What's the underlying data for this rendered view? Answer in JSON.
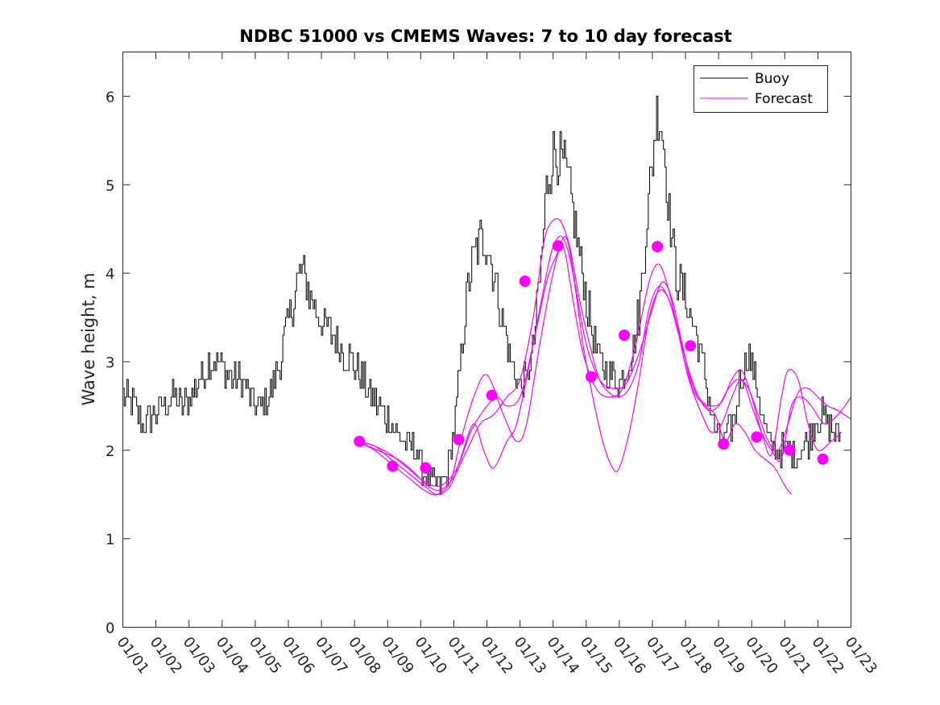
{
  "chart_data": {
    "type": "line",
    "title": "NDBC 51000 vs CMEMS Waves: 7 to 10 day forecast",
    "xlabel": "",
    "ylabel": "Wave height, m",
    "xlim": [
      0,
      22
    ],
    "ylim": [
      0,
      6.5
    ],
    "y_ticks": [
      0,
      1,
      2,
      3,
      4,
      5,
      6
    ],
    "x_tick_labels": [
      "01/01",
      "01/02",
      "01/03",
      "01/04",
      "01/05",
      "01/06",
      "01/07",
      "01/08",
      "01/09",
      "01/10",
      "01/11",
      "01/12",
      "01/13",
      "01/14",
      "01/15",
      "01/16",
      "01/17",
      "01/18",
      "01/19",
      "01/20",
      "01/21",
      "01/22",
      "01/23"
    ],
    "colors": {
      "buoy": "#000000",
      "forecast": "#ff00ff"
    },
    "legend": {
      "position": "top-right",
      "entries": [
        "Buoy",
        "Forecast"
      ]
    },
    "series": [
      {
        "name": "Buoy",
        "anchors": [
          [
            0.0,
            2.6
          ],
          [
            0.3,
            2.5
          ],
          [
            0.6,
            2.3
          ],
          [
            0.9,
            2.4
          ],
          [
            1.2,
            2.5
          ],
          [
            1.5,
            2.6
          ],
          [
            1.8,
            2.5
          ],
          [
            2.0,
            2.6
          ],
          [
            2.3,
            2.8
          ],
          [
            2.6,
            3.0
          ],
          [
            2.9,
            3.0
          ],
          [
            3.1,
            2.9
          ],
          [
            3.3,
            2.8
          ],
          [
            3.5,
            2.8
          ],
          [
            3.7,
            2.7
          ],
          [
            4.0,
            2.5
          ],
          [
            4.2,
            2.5
          ],
          [
            4.4,
            2.6
          ],
          [
            4.6,
            2.8
          ],
          [
            4.8,
            3.1
          ],
          [
            5.0,
            3.5
          ],
          [
            5.2,
            3.8
          ],
          [
            5.35,
            4.05
          ],
          [
            5.5,
            3.9
          ],
          [
            5.7,
            3.7
          ],
          [
            5.9,
            3.5
          ],
          [
            6.1,
            3.4
          ],
          [
            6.3,
            3.3
          ],
          [
            6.5,
            3.2
          ],
          [
            6.7,
            3.1
          ],
          [
            6.9,
            3.0
          ],
          [
            7.1,
            2.9
          ],
          [
            7.3,
            2.75
          ],
          [
            7.5,
            2.6
          ],
          [
            7.7,
            2.5
          ],
          [
            7.9,
            2.4
          ],
          [
            8.1,
            2.3
          ],
          [
            8.3,
            2.15
          ],
          [
            8.6,
            2.05
          ],
          [
            8.9,
            2.0
          ],
          [
            9.0,
            1.8
          ],
          [
            9.2,
            1.65
          ],
          [
            9.4,
            1.6
          ],
          [
            9.6,
            1.6
          ],
          [
            9.8,
            1.75
          ],
          [
            10.0,
            2.2
          ],
          [
            10.2,
            3.0
          ],
          [
            10.4,
            3.8
          ],
          [
            10.6,
            4.2
          ],
          [
            10.8,
            4.4
          ],
          [
            11.0,
            4.3
          ],
          [
            11.2,
            4.0
          ],
          [
            11.4,
            3.6
          ],
          [
            11.6,
            3.2
          ],
          [
            11.8,
            2.9
          ],
          [
            12.0,
            2.7
          ],
          [
            12.2,
            2.8
          ],
          [
            12.4,
            3.2
          ],
          [
            12.6,
            4.0
          ],
          [
            12.8,
            5.0
          ],
          [
            13.0,
            5.4
          ],
          [
            13.2,
            5.3
          ],
          [
            13.4,
            5.1
          ],
          [
            13.6,
            4.7
          ],
          [
            13.8,
            4.2
          ],
          [
            14.0,
            3.7
          ],
          [
            14.2,
            3.3
          ],
          [
            14.4,
            3.0
          ],
          [
            14.6,
            2.9
          ],
          [
            14.8,
            2.8
          ],
          [
            15.0,
            2.8
          ],
          [
            15.2,
            2.9
          ],
          [
            15.4,
            3.1
          ],
          [
            15.6,
            3.6
          ],
          [
            15.8,
            4.5
          ],
          [
            16.0,
            5.3
          ],
          [
            16.15,
            5.9
          ],
          [
            16.3,
            5.6
          ],
          [
            16.5,
            4.7
          ],
          [
            16.7,
            4.0
          ],
          [
            16.9,
            3.8
          ],
          [
            17.1,
            3.6
          ],
          [
            17.3,
            3.3
          ],
          [
            17.5,
            3.0
          ],
          [
            17.7,
            2.6
          ],
          [
            17.9,
            2.2
          ],
          [
            18.1,
            2.1
          ],
          [
            18.3,
            2.2
          ],
          [
            18.5,
            2.4
          ],
          [
            18.7,
            2.9
          ],
          [
            18.9,
            3.1
          ],
          [
            19.1,
            2.8
          ],
          [
            19.3,
            2.4
          ],
          [
            19.5,
            2.1
          ],
          [
            19.7,
            2.0
          ],
          [
            19.9,
            2.0
          ],
          [
            20.1,
            2.0
          ],
          [
            20.3,
            1.95
          ],
          [
            20.5,
            2.0
          ],
          [
            20.7,
            2.1
          ],
          [
            20.9,
            2.3
          ],
          [
            21.1,
            2.4
          ],
          [
            21.3,
            2.3
          ],
          [
            21.5,
            2.2
          ],
          [
            21.7,
            2.2
          ]
        ]
      },
      {
        "name": "Forecast",
        "lines": [
          [
            [
              7.1,
              2.1
            ],
            [
              7.6,
              2.0
            ],
            [
              8.1,
              1.85
            ],
            [
              8.6,
              1.7
            ],
            [
              9.1,
              1.55
            ],
            [
              9.5,
              1.5
            ],
            [
              9.9,
              1.65
            ],
            [
              10.2,
              2.1
            ],
            [
              10.6,
              2.6
            ],
            [
              11.0,
              2.85
            ],
            [
              11.5,
              2.4
            ],
            [
              11.9,
              2.1
            ],
            [
              12.2,
              2.3
            ],
            [
              12.6,
              3.2
            ],
            [
              13.0,
              4.0
            ],
            [
              13.3,
              4.3
            ],
            [
              13.6,
              3.7
            ],
            [
              13.9,
              3.1
            ],
            [
              14.3,
              2.7
            ],
            [
              14.7,
              2.6
            ],
            [
              15.1,
              2.7
            ],
            [
              15.5,
              3.2
            ],
            [
              15.9,
              3.9
            ],
            [
              16.2,
              4.1
            ],
            [
              16.5,
              3.8
            ],
            [
              16.8,
              3.3
            ],
            [
              17.1,
              2.8
            ],
            [
              17.5,
              2.4
            ],
            [
              17.8,
              2.2
            ],
            [
              18.1,
              2.3
            ],
            [
              18.4,
              2.6
            ],
            [
              18.7,
              2.8
            ],
            [
              19.0,
              2.5
            ],
            [
              19.3,
              2.2
            ],
            [
              19.6,
              2.0
            ],
            [
              19.9,
              1.9
            ],
            [
              20.2,
              2.5
            ],
            [
              20.5,
              2.6
            ],
            [
              20.8,
              2.5
            ],
            [
              21.2,
              2.3
            ],
            [
              21.6,
              2.4
            ],
            [
              22.0,
              2.6
            ]
          ],
          [
            [
              7.1,
              2.1
            ],
            [
              7.6,
              2.05
            ],
            [
              8.1,
              1.9
            ],
            [
              8.6,
              1.75
            ],
            [
              9.1,
              1.6
            ],
            [
              9.5,
              1.5
            ],
            [
              9.9,
              1.6
            ],
            [
              10.2,
              1.9
            ],
            [
              10.6,
              2.3
            ],
            [
              10.9,
              2.0
            ],
            [
              11.2,
              1.8
            ],
            [
              11.6,
              2.1
            ],
            [
              11.9,
              2.3
            ],
            [
              12.3,
              3.0
            ],
            [
              12.7,
              3.8
            ],
            [
              13.0,
              4.3
            ],
            [
              13.3,
              4.4
            ],
            [
              13.6,
              4.0
            ],
            [
              13.9,
              3.2
            ],
            [
              14.2,
              2.6
            ],
            [
              14.5,
              2.1
            ],
            [
              14.8,
              1.8
            ],
            [
              15.0,
              1.8
            ],
            [
              15.3,
              2.2
            ],
            [
              15.6,
              2.8
            ],
            [
              15.9,
              3.5
            ],
            [
              16.2,
              3.8
            ],
            [
              16.5,
              3.7
            ],
            [
              16.9,
              3.2
            ],
            [
              17.2,
              2.7
            ],
            [
              17.6,
              2.5
            ],
            [
              17.9,
              2.4
            ],
            [
              18.2,
              2.1
            ],
            [
              18.5,
              2.3
            ],
            [
              18.8,
              2.2
            ],
            [
              19.1,
              2.0
            ],
            [
              19.4,
              1.9
            ],
            [
              19.7,
              1.8
            ],
            [
              20.0,
              1.6
            ],
            [
              20.2,
              1.5
            ]
          ],
          [
            [
              7.1,
              2.1
            ],
            [
              7.7,
              2.0
            ],
            [
              8.3,
              1.9
            ],
            [
              8.8,
              1.75
            ],
            [
              9.2,
              1.6
            ],
            [
              9.6,
              1.55
            ],
            [
              10.0,
              1.7
            ],
            [
              10.4,
              2.0
            ],
            [
              10.8,
              2.3
            ],
            [
              11.2,
              2.4
            ],
            [
              11.6,
              2.6
            ],
            [
              12.0,
              2.8
            ],
            [
              12.4,
              3.5
            ],
            [
              12.7,
              4.3
            ],
            [
              12.9,
              4.55
            ],
            [
              13.2,
              4.6
            ],
            [
              13.5,
              4.3
            ],
            [
              13.8,
              3.7
            ],
            [
              14.1,
              3.2
            ],
            [
              14.4,
              2.8
            ],
            [
              14.7,
              2.65
            ],
            [
              15.0,
              2.6
            ],
            [
              15.3,
              2.7
            ],
            [
              15.6,
              3.0
            ],
            [
              15.9,
              3.6
            ],
            [
              16.2,
              3.85
            ],
            [
              16.5,
              3.7
            ],
            [
              16.8,
              3.3
            ],
            [
              17.1,
              2.9
            ],
            [
              17.4,
              2.6
            ],
            [
              17.7,
              2.45
            ],
            [
              18.0,
              2.5
            ],
            [
              18.3,
              2.7
            ],
            [
              18.6,
              2.8
            ],
            [
              18.9,
              2.7
            ],
            [
              19.2,
              2.4
            ],
            [
              19.5,
              2.1
            ],
            [
              19.8,
              2.0
            ],
            [
              20.1,
              2.3
            ],
            [
              20.4,
              2.65
            ],
            [
              20.7,
              2.7
            ],
            [
              21.0,
              2.6
            ],
            [
              21.3,
              2.5
            ],
            [
              21.6,
              2.45
            ],
            [
              22.0,
              2.35
            ]
          ],
          [
            [
              7.1,
              2.1
            ],
            [
              7.6,
              2.05
            ],
            [
              8.1,
              1.95
            ],
            [
              8.6,
              1.8
            ],
            [
              9.1,
              1.65
            ],
            [
              9.6,
              1.6
            ],
            [
              10.1,
              1.8
            ],
            [
              10.5,
              2.2
            ],
            [
              10.9,
              2.45
            ],
            [
              11.3,
              2.6
            ],
            [
              11.6,
              2.5
            ],
            [
              12.0,
              2.6
            ],
            [
              12.4,
              3.2
            ],
            [
              12.8,
              3.9
            ],
            [
              13.1,
              4.2
            ],
            [
              13.4,
              4.4
            ],
            [
              13.7,
              3.8
            ],
            [
              14.0,
              3.2
            ],
            [
              14.4,
              2.8
            ],
            [
              14.8,
              2.7
            ],
            [
              15.2,
              2.75
            ],
            [
              15.6,
              3.1
            ],
            [
              16.0,
              3.6
            ],
            [
              16.3,
              3.9
            ],
            [
              16.6,
              3.7
            ],
            [
              16.9,
              3.2
            ],
            [
              17.2,
              2.75
            ],
            [
              17.5,
              2.55
            ],
            [
              17.8,
              2.5
            ],
            [
              18.1,
              2.55
            ],
            [
              18.4,
              2.8
            ],
            [
              18.7,
              2.9
            ],
            [
              19.0,
              2.6
            ],
            [
              19.3,
              2.2
            ],
            [
              19.6,
              1.95
            ],
            [
              19.9,
              2.6
            ],
            [
              20.1,
              2.9
            ],
            [
              20.4,
              2.8
            ],
            [
              20.7,
              2.3
            ],
            [
              21.0,
              2.0
            ],
            [
              21.4,
              2.1
            ],
            [
              21.7,
              2.2
            ]
          ]
        ],
        "markers": [
          [
            7.15,
            2.1
          ],
          [
            8.15,
            1.82
          ],
          [
            9.15,
            1.8
          ],
          [
            10.15,
            2.12
          ],
          [
            11.15,
            2.62
          ],
          [
            12.15,
            3.91
          ],
          [
            13.15,
            4.31
          ],
          [
            14.15,
            2.83
          ],
          [
            15.15,
            3.3
          ],
          [
            16.15,
            4.3
          ],
          [
            17.15,
            3.18
          ],
          [
            18.15,
            2.07
          ],
          [
            19.15,
            2.15
          ],
          [
            20.15,
            2.0
          ],
          [
            21.15,
            1.9
          ]
        ]
      }
    ]
  }
}
